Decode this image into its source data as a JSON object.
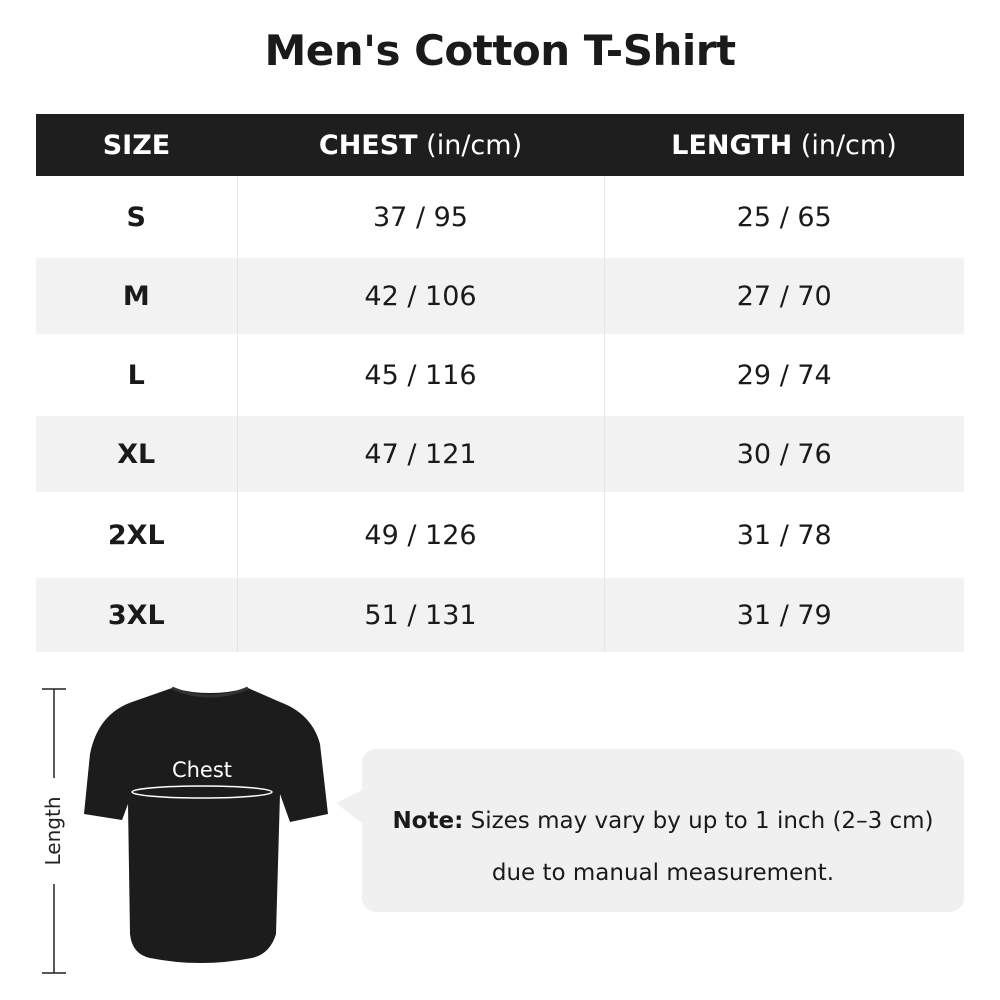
{
  "title": "Men's Cotton T-Shirt",
  "table": {
    "headers": [
      {
        "label": "SIZE",
        "unit": ""
      },
      {
        "label": "CHEST",
        "unit": " (in/cm)"
      },
      {
        "label": "LENGTH",
        "unit": " (in/cm)"
      }
    ],
    "rows": [
      [
        "S",
        "37 / 95",
        "25 / 65"
      ],
      [
        "M",
        "42 / 106",
        "27 / 70"
      ],
      [
        "L",
        "45 / 116",
        "29 / 74"
      ],
      [
        "XL",
        "47 / 121",
        "30 / 76"
      ],
      [
        "2XL",
        "49 / 126",
        "31 / 78"
      ],
      [
        "3XL",
        "51 / 131",
        "31 / 79"
      ]
    ]
  },
  "diagram": {
    "chest_label": "Chest",
    "length_label": "Length"
  },
  "note": {
    "label": "Note:",
    "line1": " Sizes may vary by up to 1 inch (2–3 cm)",
    "line2": "due to manual measurement."
  },
  "colors": {
    "header_bg": "#1e1e1e",
    "stripe": "#f2f2f2",
    "note_bg": "#f0f0f0"
  }
}
